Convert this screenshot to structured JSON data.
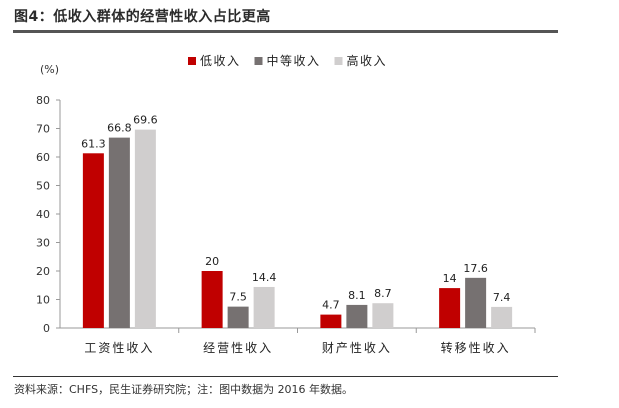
{
  "header": {
    "title": "图4：低收入群体的经营性收入占比更高"
  },
  "footer": {
    "source": "资料来源：CHFS，民生证券研究院；注：图中数据为 2016 年数据。"
  },
  "chart_data": {
    "type": "bar",
    "title": "图4：低收入群体的经营性收入占比更高",
    "ylabel": "(%)",
    "xlabel": "",
    "ylim": [
      0,
      80
    ],
    "yticks": [
      0,
      10,
      20,
      30,
      40,
      50,
      60,
      70,
      80
    ],
    "grid": false,
    "legend": "top-right",
    "categories": [
      "工资性收入",
      "经营性收入",
      "财产性收入",
      "转移性收入"
    ],
    "series": [
      {
        "name": "低收入",
        "color": "#c00000",
        "values": [
          61.3,
          20,
          4.7,
          14
        ]
      },
      {
        "name": "中等收入",
        "color": "#767171",
        "values": [
          66.8,
          7.5,
          8.1,
          17.6
        ]
      },
      {
        "name": "高收入",
        "color": "#d0cece",
        "values": [
          69.6,
          14.4,
          8.7,
          7.4
        ]
      }
    ]
  }
}
